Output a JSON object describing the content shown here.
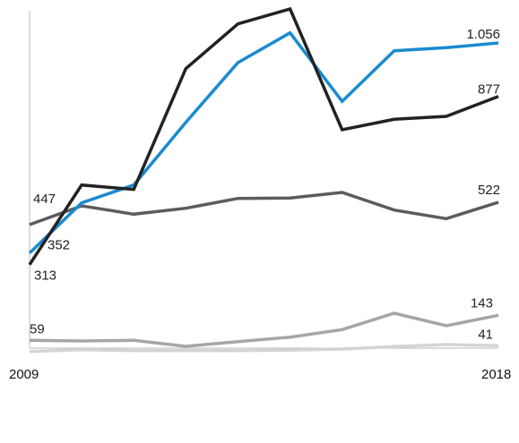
{
  "chart_data": {
    "type": "line",
    "title": "",
    "xlabel": "",
    "ylabel": "",
    "x": [
      2009,
      2010,
      2011,
      2012,
      2013,
      2014,
      2015,
      2016,
      2017,
      2018
    ],
    "xlim": [
      2009,
      2018
    ],
    "ylim": [
      0,
      1200
    ],
    "grid": false,
    "legend": "none",
    "x_tick_labels": [
      "2009",
      "2018"
    ],
    "series": [
      {
        "color": "#1a8bd0",
        "values": [
          352,
          520,
          580,
          790,
          990,
          1090,
          860,
          1030,
          1040,
          1056
        ],
        "start_label": "352",
        "end_label": "1.056"
      },
      {
        "color": "#222222",
        "values": [
          313,
          580,
          565,
          970,
          1120,
          1170,
          765,
          800,
          810,
          877
        ],
        "start_label": "313",
        "end_label": "877"
      },
      {
        "color": "#5c5c5c",
        "values": [
          447,
          510,
          482,
          502,
          535,
          536,
          555,
          496,
          467,
          522
        ],
        "start_label": "447",
        "end_label": "522"
      },
      {
        "color": "#a6a6a6",
        "values": [
          59,
          57,
          59,
          39,
          55,
          70,
          95,
          150,
          108,
          143
        ],
        "start_label": "59",
        "end_label": "143"
      },
      {
        "color": "#d4d4d4",
        "values": [
          22,
          28,
          25,
          25,
          25,
          26,
          30,
          38,
          45,
          41
        ],
        "start_label": "",
        "end_label": "41"
      }
    ]
  }
}
